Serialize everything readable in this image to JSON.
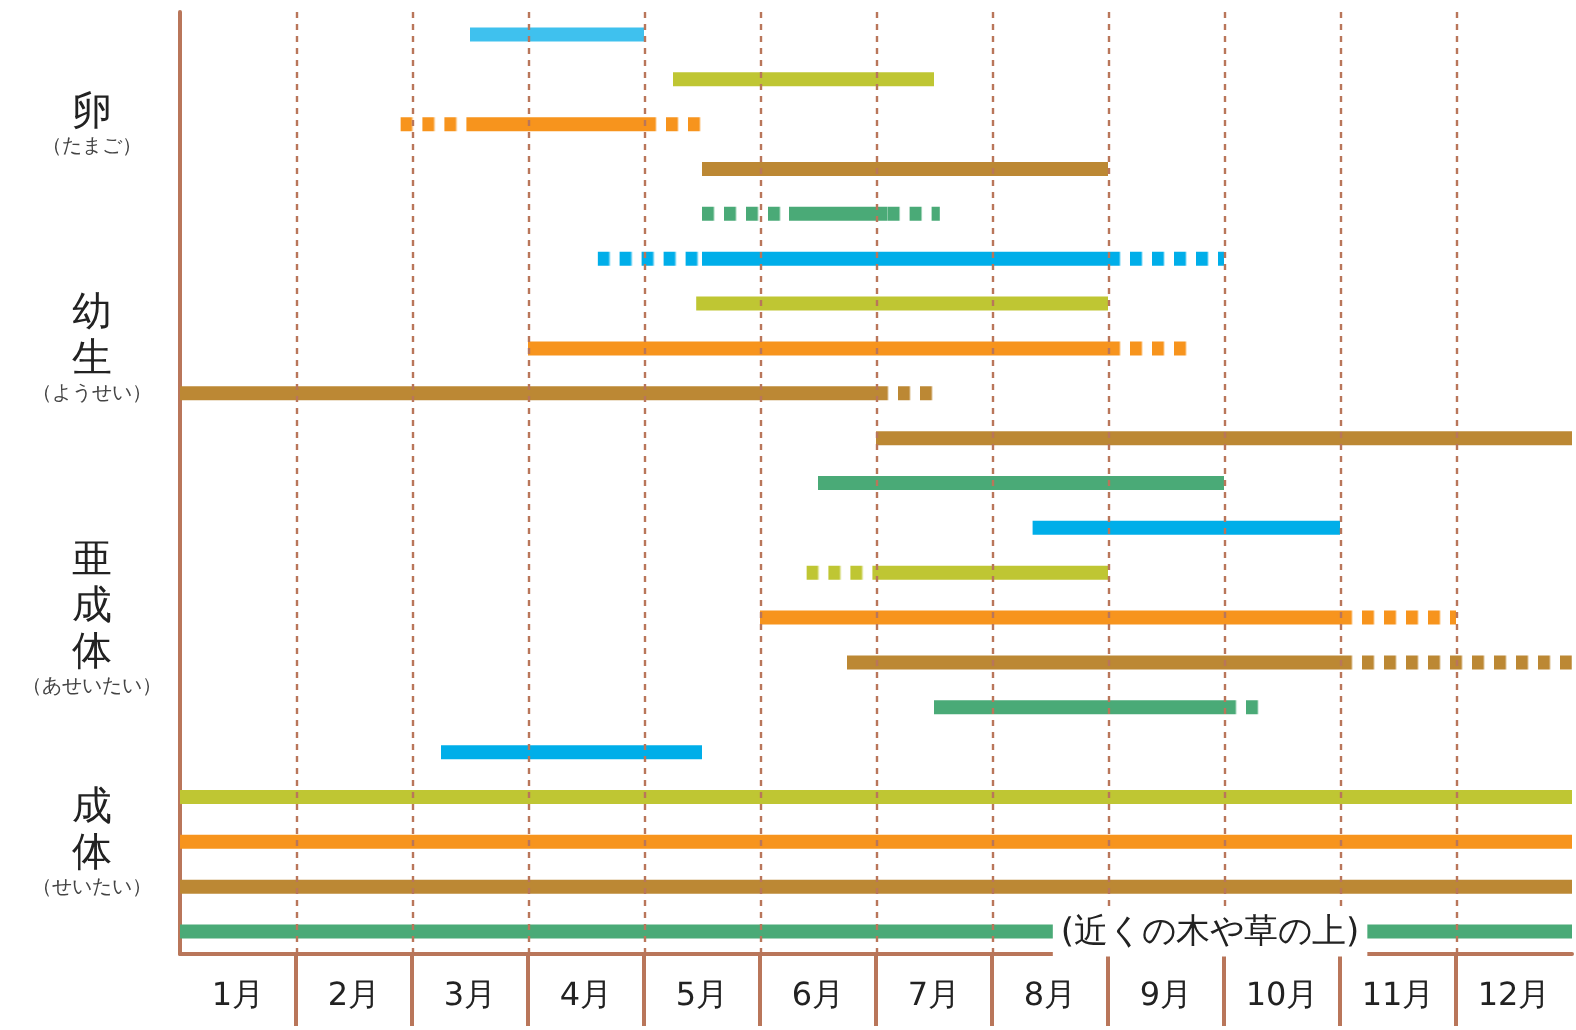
{
  "chart_data": {
    "type": "bar",
    "orientation": "horizontal",
    "categories": [
      null,
      null,
      "卵（たまご）",
      null,
      null,
      null,
      null,
      "幼生（ようせい）",
      null,
      null,
      null,
      null,
      null,
      "亜成体（あせいたい）",
      null,
      null,
      null,
      null,
      "成体（せいたい）",
      null,
      null
    ],
    "xlim": [
      0,
      12
    ],
    "xticks": [
      {
        "value": 0.5,
        "label": "1月"
      },
      {
        "value": 1,
        "label": null
      },
      {
        "value": 1.5,
        "label": "2月"
      },
      {
        "value": 2,
        "label": null
      },
      {
        "value": 2.5,
        "label": "3月"
      },
      {
        "value": 3,
        "label": null
      },
      {
        "value": 3.5,
        "label": "4月"
      },
      {
        "value": 4,
        "label": null
      },
      {
        "value": 4.5,
        "label": "5月"
      },
      {
        "value": 5,
        "label": null
      },
      {
        "value": 5.5,
        "label": "6月"
      },
      {
        "value": 6,
        "label": null
      },
      {
        "value": 6.5,
        "label": "7月"
      },
      {
        "value": 7,
        "label": null
      },
      {
        "value": 7.5,
        "label": "8月"
      },
      {
        "value": 8,
        "label": null
      },
      {
        "value": 8.5,
        "label": "9月"
      },
      {
        "value": 9,
        "label": null
      },
      {
        "value": 9.5,
        "label": "10月"
      },
      {
        "value": 10,
        "label": null
      },
      {
        "value": 10.5,
        "label": "11月"
      },
      {
        "value": 11,
        "label": null
      },
      {
        "value": 11.5,
        "label": "12月"
      }
    ],
    "grid": "x",
    "annotations": [
      "(近くの木や草の上)"
    ],
    "series": [
      {
        "color": "#3fc1ee",
        "base": [
          2.5,
          null,
          null,
          null,
          null,
          null,
          null,
          null,
          null,
          null,
          null,
          null,
          null,
          null,
          null,
          null,
          null,
          null,
          null,
          null,
          null
        ],
        "values": [
          1.5,
          null,
          null,
          null,
          null,
          null,
          null,
          null,
          null,
          null,
          null,
          null,
          null,
          null,
          null,
          null,
          null,
          null,
          null,
          null,
          null
        ]
      },
      {
        "color": "#00aee9",
        "base": [
          null,
          null,
          null,
          null,
          null,
          4.5,
          null,
          null,
          null,
          null,
          null,
          7.35,
          null,
          null,
          null,
          null,
          2.25,
          null,
          null,
          null,
          null
        ],
        "values": [
          null,
          null,
          null,
          null,
          null,
          3.5,
          null,
          null,
          null,
          null,
          null,
          2.65,
          null,
          null,
          null,
          null,
          2.25,
          null,
          null,
          null,
          null
        ]
      },
      {
        "color": "#bfc633",
        "base": [
          null,
          4.25,
          null,
          null,
          null,
          null,
          4.45,
          null,
          null,
          null,
          null,
          null,
          6,
          null,
          null,
          null,
          null,
          0,
          null,
          null,
          null
        ],
        "values": [
          null,
          2.25,
          null,
          null,
          null,
          null,
          3.55,
          null,
          null,
          null,
          null,
          null,
          2,
          null,
          null,
          null,
          null,
          12,
          null,
          null,
          null
        ]
      },
      {
        "color": "#f7941d",
        "base": [
          null,
          null,
          2.5,
          null,
          null,
          null,
          null,
          3,
          null,
          null,
          null,
          null,
          null,
          5,
          null,
          null,
          null,
          null,
          0,
          null,
          null
        ],
        "values": [
          null,
          null,
          1.5,
          null,
          null,
          null,
          null,
          5,
          null,
          null,
          null,
          null,
          null,
          5,
          null,
          null,
          null,
          null,
          12,
          null,
          null
        ]
      },
      {
        "color": "#bc8834",
        "base": [
          null,
          null,
          null,
          4.5,
          null,
          null,
          null,
          null,
          0,
          6,
          null,
          null,
          null,
          null,
          5.75,
          null,
          null,
          null,
          null,
          0,
          null
        ],
        "values": [
          null,
          null,
          null,
          3.5,
          null,
          null,
          null,
          null,
          6,
          6,
          null,
          null,
          null,
          null,
          4.25,
          null,
          null,
          null,
          null,
          12,
          null
        ]
      },
      {
        "color": "#4aaa77",
        "base": [
          null,
          null,
          null,
          null,
          5.25,
          null,
          null,
          null,
          null,
          null,
          5.5,
          null,
          null,
          null,
          null,
          6.5,
          null,
          null,
          null,
          null,
          0
        ],
        "values": [
          null,
          null,
          null,
          null,
          0.85,
          null,
          null,
          null,
          null,
          null,
          3.5,
          null,
          null,
          null,
          null,
          2.5,
          null,
          null,
          null,
          null,
          12
        ]
      },
      {
        "line_style": "dotted",
        "colors": [
          null,
          null,
          "#f7941d",
          null,
          "#4aaa77",
          "#00aee9",
          null,
          null,
          null,
          null,
          null,
          null,
          "#bfc633",
          null,
          null,
          null,
          null,
          null,
          null,
          null,
          null
        ],
        "base": [
          null,
          null,
          1.9,
          null,
          4.5,
          3.6,
          null,
          null,
          null,
          null,
          null,
          null,
          5.4,
          null,
          null,
          null,
          null,
          null,
          null,
          null,
          null
        ],
        "values": [
          null,
          null,
          0.6,
          null,
          0.75,
          0.9,
          null,
          null,
          null,
          null,
          null,
          null,
          0.6,
          null,
          null,
          null,
          null,
          null,
          null,
          null,
          null
        ]
      },
      {
        "line_style": "dotted",
        "colors": [
          null,
          null,
          "#f7941d",
          null,
          "#4aaa77",
          "#00aee9",
          null,
          "#f7941d",
          "#bc8834",
          null,
          null,
          null,
          null,
          "#f7941d",
          "#bc8834",
          "#4aaa77",
          null,
          null,
          null,
          null,
          null
        ],
        "base": [
          null,
          null,
          4,
          null,
          6.1,
          8,
          null,
          8,
          6,
          null,
          null,
          null,
          null,
          10,
          10,
          9,
          null,
          null,
          null,
          null,
          null
        ],
        "values": [
          null,
          null,
          0.5,
          null,
          0.45,
          1,
          null,
          0.75,
          0.5,
          null,
          null,
          null,
          null,
          1,
          2,
          0.3,
          null,
          null,
          null,
          null,
          null
        ]
      }
    ]
  }
}
